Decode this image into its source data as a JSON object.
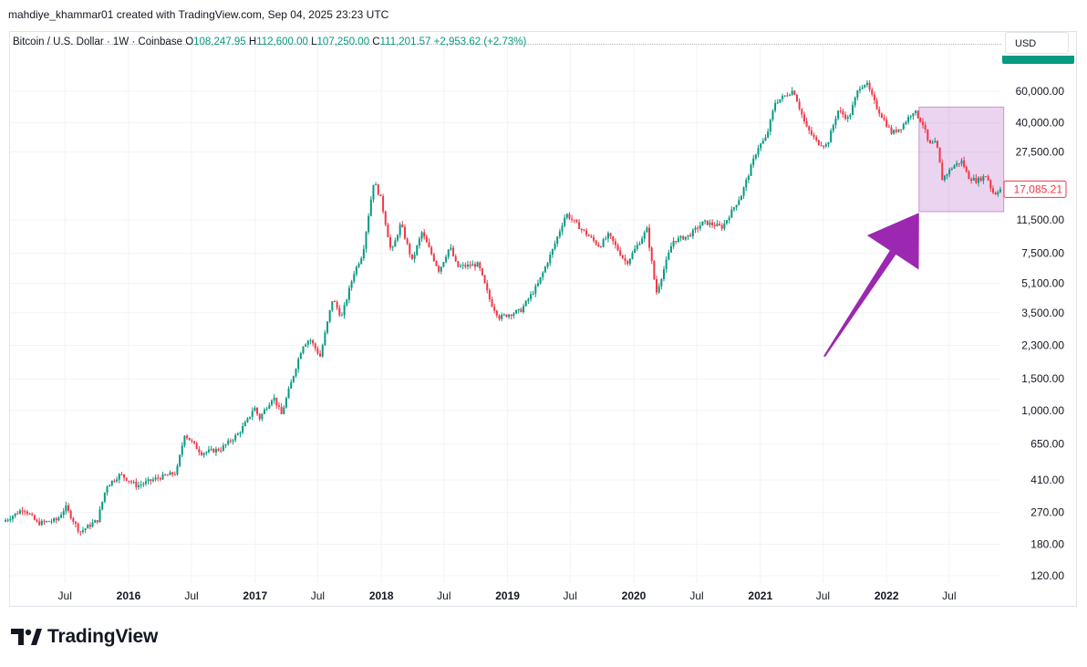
{
  "header": {
    "author_line": "mahdiye_khammar01 created with TradingView.com, Sep 04, 2025 23:23 UTC"
  },
  "legend": {
    "symbol": "Bitcoin / U.S. Dollar · 1W · Coinbase",
    "open_label": "O",
    "open": "108,247.95",
    "high_label": "H",
    "high": "112,600.00",
    "low_label": "L",
    "low": "107,250.00",
    "close_label": "C",
    "close": "111,201.57",
    "change": "+2,953.62 (+2.73%)"
  },
  "currency_button": "USD",
  "brand": {
    "name": "TradingView"
  },
  "colors": {
    "up": "#089981",
    "down": "#f23645",
    "highlight": "#9c27b0",
    "grid": "#f0f3fa"
  },
  "chart_data": {
    "type": "candlestick",
    "scale": "log",
    "ylim": [
      100,
      95000
    ],
    "price_ticks": [
      "60,000.00",
      "40,000.00",
      "27,500.00",
      "17,085.21",
      "11,500.00",
      "7,500.00",
      "5,100.00",
      "3,500.00",
      "2,300.00",
      "1,500.00",
      "1,000.00",
      "650.00",
      "410.00",
      "270.00",
      "180.00",
      "120.00"
    ],
    "price_tick_values": [
      60000,
      40000,
      27500,
      17085.21,
      11500,
      7500,
      5100,
      3500,
      2300,
      1500,
      1000,
      650,
      410,
      270,
      180,
      120
    ],
    "last_price": 17085.21,
    "last_price_label": "17,085.21",
    "time_labels": [
      {
        "label": "Jul",
        "date": "2015-07-01",
        "bold": false
      },
      {
        "label": "2016",
        "date": "2016-01-01",
        "bold": true
      },
      {
        "label": "Jul",
        "date": "2016-07-01",
        "bold": false
      },
      {
        "label": "2017",
        "date": "2017-01-01",
        "bold": true
      },
      {
        "label": "Jul",
        "date": "2017-07-01",
        "bold": false
      },
      {
        "label": "2018",
        "date": "2018-01-01",
        "bold": true
      },
      {
        "label": "Jul",
        "date": "2018-07-01",
        "bold": false
      },
      {
        "label": "2019",
        "date": "2019-01-01",
        "bold": true
      },
      {
        "label": "Jul",
        "date": "2019-07-01",
        "bold": false
      },
      {
        "label": "2020",
        "date": "2020-01-01",
        "bold": true
      },
      {
        "label": "Jul",
        "date": "2020-07-01",
        "bold": false
      },
      {
        "label": "2021",
        "date": "2021-01-01",
        "bold": true
      },
      {
        "label": "Jul",
        "date": "2021-07-01",
        "bold": false
      },
      {
        "label": "2022",
        "date": "2022-01-01",
        "bold": true
      },
      {
        "label": "Jul",
        "date": "2022-07-01",
        "bold": false
      }
    ],
    "x_range": [
      "2015-01-10",
      "2022-11-28"
    ],
    "price_path": [
      [
        "2015-01-10",
        240
      ],
      [
        "2015-02-15",
        265
      ],
      [
        "2015-03-10",
        285
      ],
      [
        "2015-04-20",
        235
      ],
      [
        "2015-06-15",
        245
      ],
      [
        "2015-07-10",
        290
      ],
      [
        "2015-08-20",
        210
      ],
      [
        "2015-10-10",
        245
      ],
      [
        "2015-11-05",
        380
      ],
      [
        "2015-12-15",
        440
      ],
      [
        "2016-02-01",
        380
      ],
      [
        "2016-04-01",
        420
      ],
      [
        "2016-05-25",
        450
      ],
      [
        "2016-06-18",
        740
      ],
      [
        "2016-08-05",
        580
      ],
      [
        "2016-10-01",
        610
      ],
      [
        "2016-11-20",
        740
      ],
      [
        "2016-12-20",
        900
      ],
      [
        "2017-01-05",
        1050
      ],
      [
        "2017-01-20",
        900
      ],
      [
        "2017-03-01",
        1200
      ],
      [
        "2017-03-25",
        950
      ],
      [
        "2017-05-25",
        2300
      ],
      [
        "2017-06-15",
        2500
      ],
      [
        "2017-07-15",
        2000
      ],
      [
        "2017-08-20",
        4200
      ],
      [
        "2017-09-15",
        3300
      ],
      [
        "2017-10-20",
        5800
      ],
      [
        "2017-11-15",
        7500
      ],
      [
        "2017-12-17",
        19000
      ],
      [
        "2018-01-07",
        15000
      ],
      [
        "2018-02-06",
        7500
      ],
      [
        "2018-03-05",
        11000
      ],
      [
        "2018-04-07",
        6800
      ],
      [
        "2018-05-05",
        9800
      ],
      [
        "2018-06-24",
        6000
      ],
      [
        "2018-07-25",
        8200
      ],
      [
        "2018-08-15",
        6300
      ],
      [
        "2018-10-15",
        6500
      ],
      [
        "2018-11-20",
        4000
      ],
      [
        "2018-12-15",
        3300
      ],
      [
        "2019-02-15",
        3600
      ],
      [
        "2019-04-05",
        5000
      ],
      [
        "2019-05-20",
        8000
      ],
      [
        "2019-06-26",
        12500
      ],
      [
        "2019-08-15",
        10000
      ],
      [
        "2019-10-01",
        8200
      ],
      [
        "2019-10-27",
        9500
      ],
      [
        "2019-12-18",
        6600
      ],
      [
        "2020-02-15",
        10200
      ],
      [
        "2020-03-13",
        4500
      ],
      [
        "2020-04-30",
        8800
      ],
      [
        "2020-06-15",
        9400
      ],
      [
        "2020-07-28",
        11200
      ],
      [
        "2020-09-20",
        10500
      ],
      [
        "2020-11-15",
        16000
      ],
      [
        "2020-12-31",
        29000
      ],
      [
        "2021-01-25",
        33000
      ],
      [
        "2021-02-20",
        52000
      ],
      [
        "2021-04-14",
        61000
      ],
      [
        "2021-05-20",
        38000
      ],
      [
        "2021-06-22",
        31000
      ],
      [
        "2021-07-20",
        30000
      ],
      [
        "2021-08-20",
        47000
      ],
      [
        "2021-09-20",
        42000
      ],
      [
        "2021-10-20",
        63000
      ],
      [
        "2021-11-10",
        67000
      ],
      [
        "2021-12-10",
        49000
      ],
      [
        "2022-01-23",
        35000
      ],
      [
        "2022-02-20",
        38000
      ],
      [
        "2022-03-28",
        47000
      ],
      [
        "2022-04-25",
        39000
      ],
      [
        "2022-05-10",
        30000
      ],
      [
        "2022-06-01",
        31000
      ],
      [
        "2022-06-18",
        19500
      ],
      [
        "2022-07-20",
        23000
      ],
      [
        "2022-08-14",
        24500
      ],
      [
        "2022-09-01",
        20000
      ],
      [
        "2022-09-25",
        19000
      ],
      [
        "2022-10-25",
        20500
      ],
      [
        "2022-11-09",
        16500
      ],
      [
        "2022-11-21",
        16200
      ],
      [
        "2022-11-28",
        17085
      ]
    ],
    "annotations": [
      {
        "type": "rectangle",
        "from_date": "2022-04-05",
        "to_date": "2022-11-28",
        "top_price": 49000,
        "bottom_price": 12800
      },
      {
        "type": "arrow",
        "from_date": "2021-07-05",
        "from_price": 2000,
        "to_date": "2022-04-05",
        "to_price": 12600
      }
    ]
  }
}
